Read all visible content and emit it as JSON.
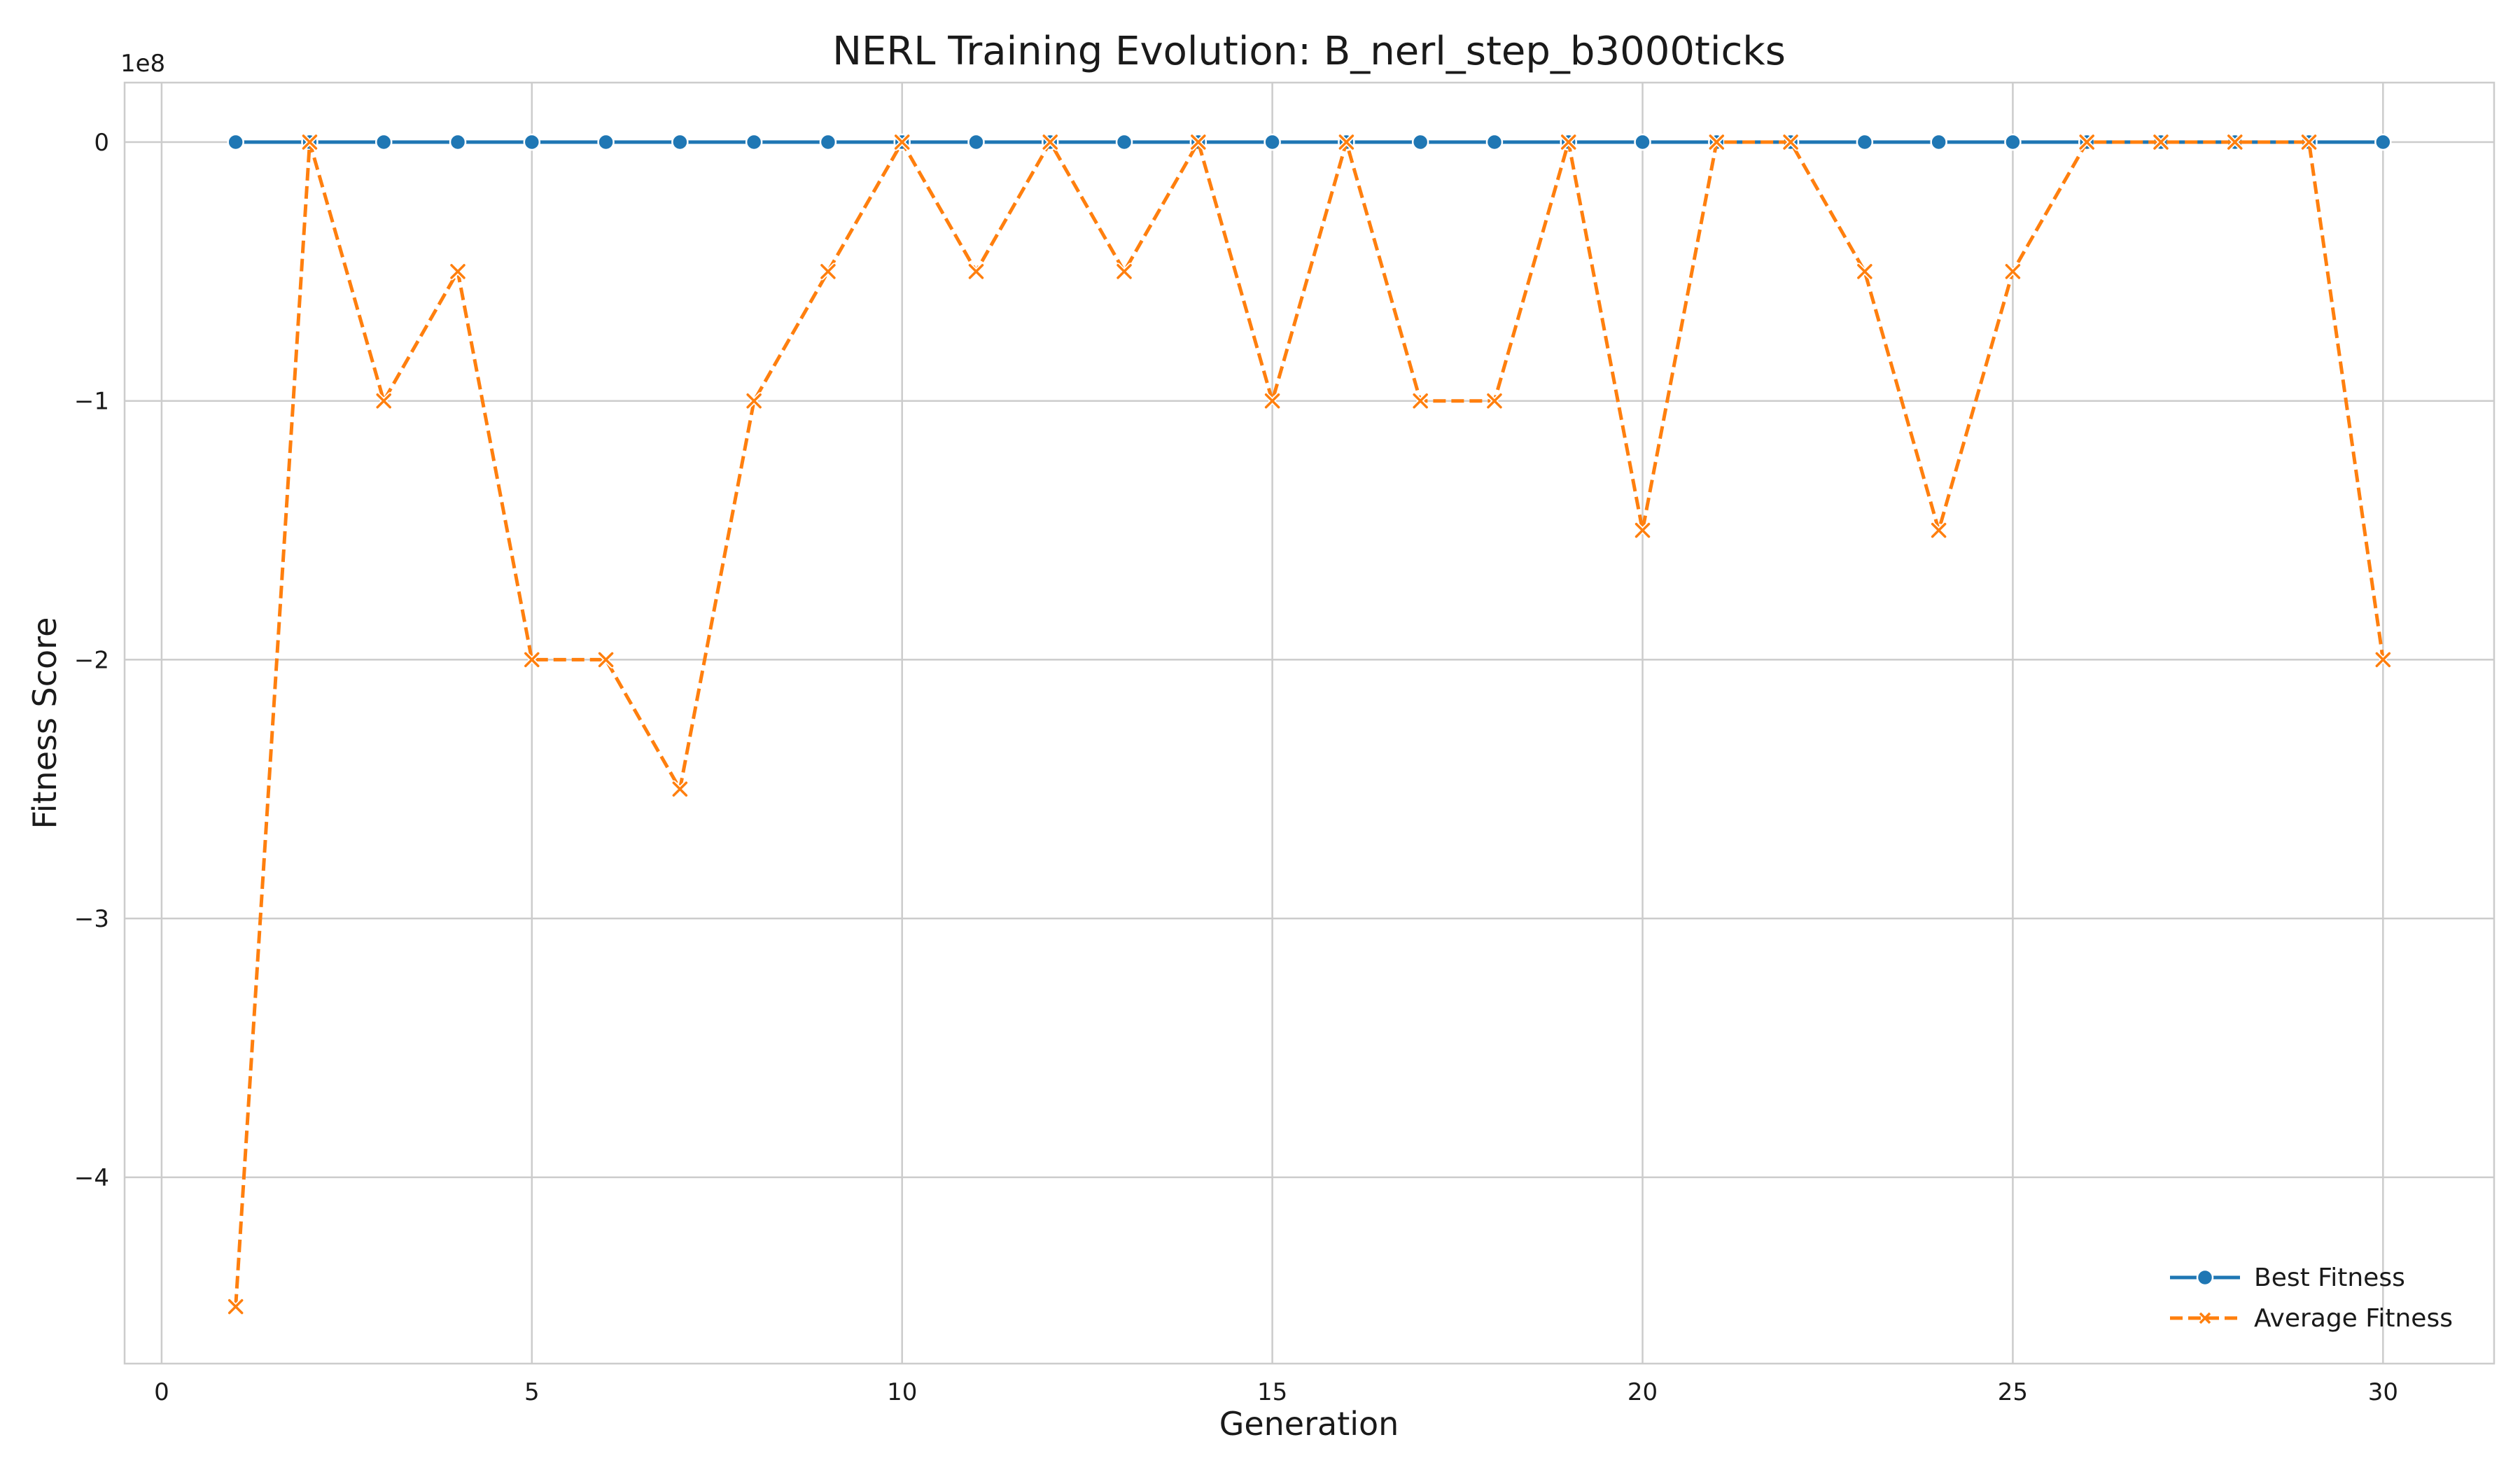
{
  "chart_data": {
    "type": "line",
    "title": "NERL Training Evolution: B_nerl_step_b3000ticks",
    "xlabel": "Generation",
    "ylabel": "Fitness Score",
    "y_offset_label": "1e8",
    "xlim": [
      -0.5,
      31.5
    ],
    "ylim": [
      -4.72,
      0.23
    ],
    "x_ticks": [
      0,
      5,
      10,
      15,
      20,
      25,
      30
    ],
    "x_tick_labels": [
      "0",
      "5",
      "10",
      "15",
      "20",
      "25",
      "30"
    ],
    "y_ticks": [
      0,
      -1,
      -2,
      -3,
      -4
    ],
    "y_tick_labels": [
      "0",
      "−1",
      "−2",
      "−3",
      "−4"
    ],
    "grid": true,
    "legend_position": "bottom-right",
    "x": [
      1,
      2,
      3,
      4,
      5,
      6,
      7,
      8,
      9,
      10,
      11,
      12,
      13,
      14,
      15,
      16,
      17,
      18,
      19,
      20,
      21,
      22,
      23,
      24,
      25,
      26,
      27,
      28,
      29,
      30
    ],
    "series": [
      {
        "name": "Best Fitness",
        "color": "#1f77b4",
        "style": "solid",
        "marker": "circle",
        "values": [
          0,
          0,
          0,
          0,
          0,
          0,
          0,
          0,
          0,
          0,
          0,
          0,
          0,
          0,
          0,
          0,
          0,
          0,
          0,
          0,
          0,
          0,
          0,
          0,
          0,
          0,
          0,
          0,
          0,
          0
        ]
      },
      {
        "name": "Average Fitness",
        "color": "#ff7f0e",
        "style": "dashed",
        "marker": "x",
        "values": [
          -4.5,
          0,
          -1,
          -0.5,
          -2,
          -2,
          -2.5,
          -1,
          -0.5,
          0,
          -0.5,
          0,
          -0.5,
          0,
          -1,
          0,
          -1,
          -1,
          0,
          -1.5,
          0,
          0,
          -0.5,
          -1.5,
          -0.5,
          0,
          0,
          0,
          0,
          -2
        ]
      }
    ]
  }
}
